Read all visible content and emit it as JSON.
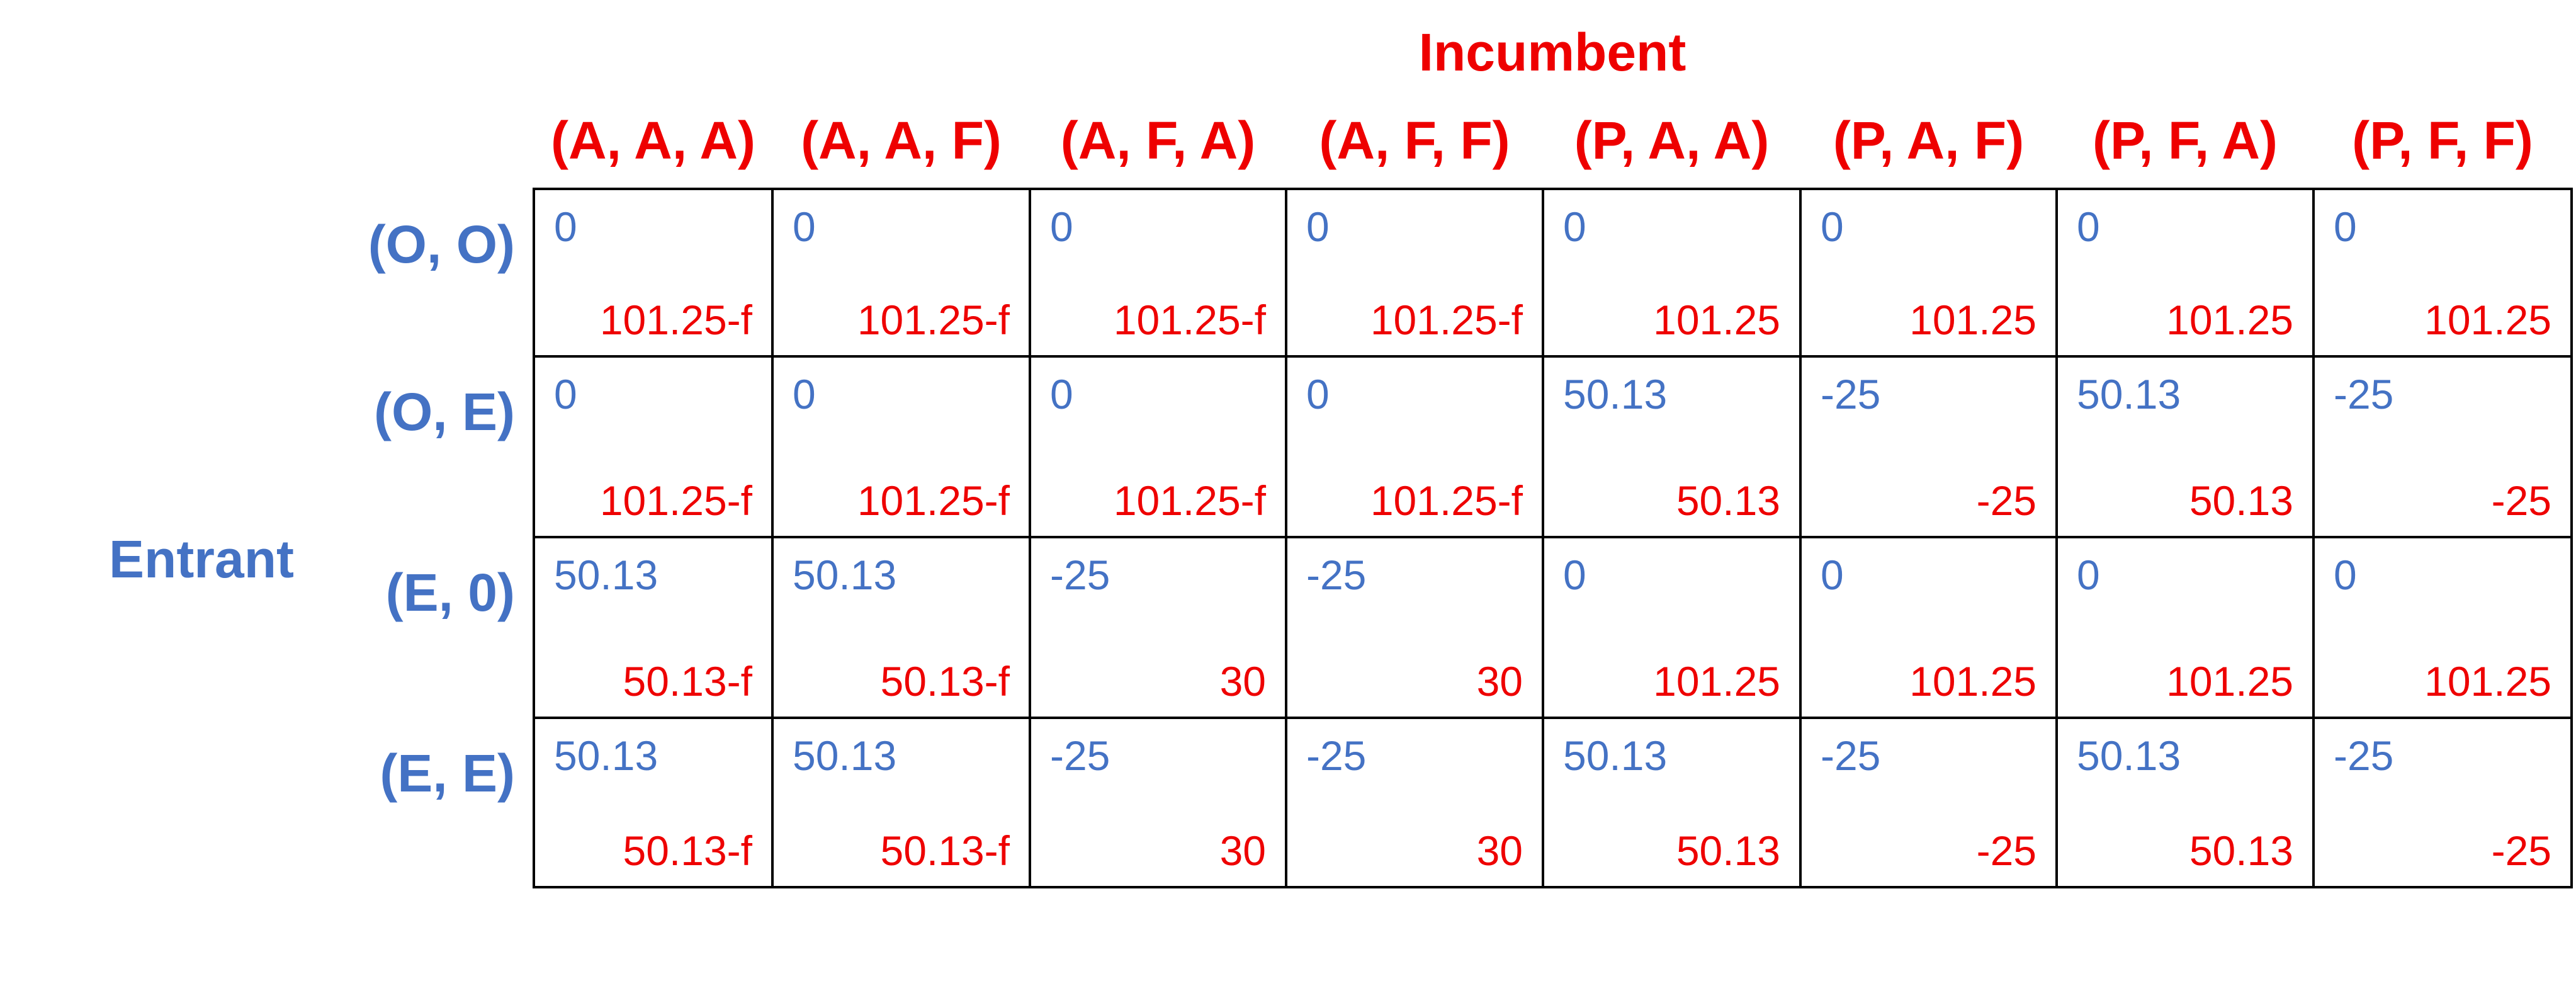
{
  "column_player": "Incumbent",
  "row_player": "Entrant",
  "columns": [
    "(A, A, A)",
    "(A, A, F)",
    "(A, F, A)",
    "(A, F, F)",
    "(P, A, A)",
    "(P, A, F)",
    "(P, F, A)",
    "(P, F, F)"
  ],
  "rows": [
    {
      "label": "(O, O)",
      "cells": [
        {
          "entrant": "0",
          "incumbent": "101.25-f"
        },
        {
          "entrant": "0",
          "incumbent": "101.25-f"
        },
        {
          "entrant": "0",
          "incumbent": "101.25-f"
        },
        {
          "entrant": "0",
          "incumbent": "101.25-f"
        },
        {
          "entrant": "0",
          "incumbent": "101.25"
        },
        {
          "entrant": "0",
          "incumbent": "101.25"
        },
        {
          "entrant": "0",
          "incumbent": "101.25"
        },
        {
          "entrant": "0",
          "incumbent": "101.25"
        }
      ]
    },
    {
      "label": "(O, E)",
      "cells": [
        {
          "entrant": "0",
          "incumbent": "101.25-f"
        },
        {
          "entrant": "0",
          "incumbent": "101.25-f"
        },
        {
          "entrant": "0",
          "incumbent": "101.25-f"
        },
        {
          "entrant": "0",
          "incumbent": "101.25-f"
        },
        {
          "entrant": "50.13",
          "incumbent": "50.13"
        },
        {
          "entrant": "-25",
          "incumbent": "-25"
        },
        {
          "entrant": "50.13",
          "incumbent": "50.13"
        },
        {
          "entrant": "-25",
          "incumbent": "-25"
        }
      ]
    },
    {
      "label": "(E, 0)",
      "cells": [
        {
          "entrant": "50.13",
          "incumbent": "50.13-f"
        },
        {
          "entrant": "50.13",
          "incumbent": "50.13-f"
        },
        {
          "entrant": "-25",
          "incumbent": "30"
        },
        {
          "entrant": "-25",
          "incumbent": "30"
        },
        {
          "entrant": "0",
          "incumbent": "101.25"
        },
        {
          "entrant": "0",
          "incumbent": "101.25"
        },
        {
          "entrant": "0",
          "incumbent": "101.25"
        },
        {
          "entrant": "0",
          "incumbent": "101.25"
        }
      ]
    },
    {
      "label": "(E, E)",
      "cells": [
        {
          "entrant": "50.13",
          "incumbent": "50.13-f"
        },
        {
          "entrant": "50.13",
          "incumbent": "50.13-f"
        },
        {
          "entrant": "-25",
          "incumbent": "30"
        },
        {
          "entrant": "-25",
          "incumbent": "30"
        },
        {
          "entrant": "50.13",
          "incumbent": "50.13"
        },
        {
          "entrant": "-25",
          "incumbent": "-25"
        },
        {
          "entrant": "50.13",
          "incumbent": "50.13"
        },
        {
          "entrant": "-25",
          "incumbent": "-25"
        }
      ]
    }
  ]
}
